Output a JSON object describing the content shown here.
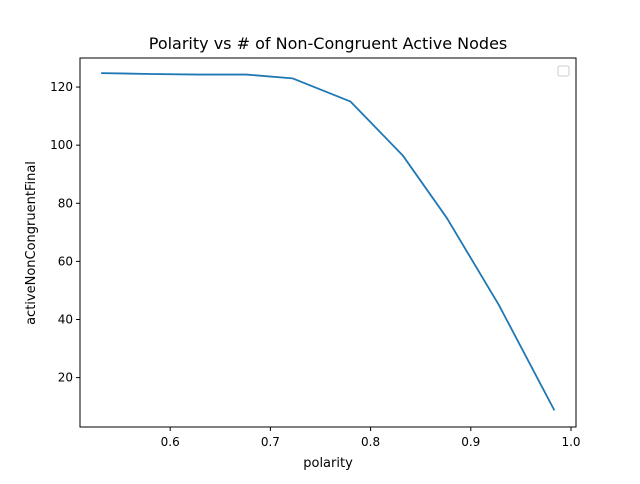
{
  "chart_data": {
    "type": "line",
    "title": "Polarity vs # of Non-Congruent Active Nodes",
    "xlabel": "polarity",
    "ylabel": "activeNonCongruentFinal",
    "xlim": [
      0.51,
      1.005
    ],
    "ylim": [
      3,
      130
    ],
    "xticks": [
      0.6,
      0.7,
      0.8,
      0.9,
      1.0
    ],
    "xtick_labels": [
      "0.6",
      "0.7",
      "0.8",
      "0.9",
      "1.0"
    ],
    "yticks": [
      20,
      40,
      60,
      80,
      100,
      120
    ],
    "ytick_labels": [
      "20",
      "40",
      "60",
      "80",
      "100",
      "120"
    ],
    "grid": false,
    "legend": {
      "placement": "top-right",
      "entries": []
    },
    "series": [
      {
        "color": "#1f77b4",
        "x": [
          0.532,
          0.58,
          0.628,
          0.676,
          0.722,
          0.78,
          0.832,
          0.876,
          0.928,
          0.983
        ],
        "y": [
          124.8,
          124.5,
          124.3,
          124.3,
          123.0,
          115.0,
          96.5,
          75.0,
          45.0,
          9.0
        ]
      }
    ]
  }
}
